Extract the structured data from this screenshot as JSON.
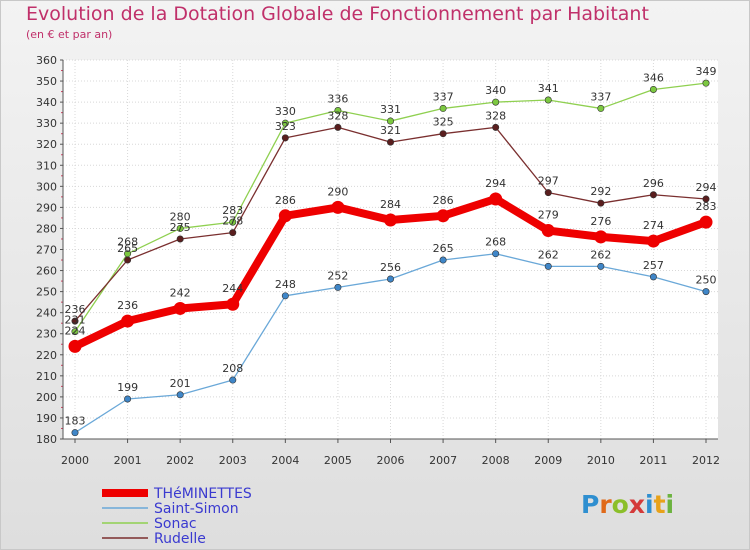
{
  "title": "Evolution de la Dotation Globale de Fonctionnement par Habitant",
  "subtitle": "(en € et par an)",
  "logo": {
    "text": "Proxiti",
    "colors": [
      "#2f8fd0",
      "#e06a1a",
      "#8bbf2a",
      "#d43a3a",
      "#2f8fd0",
      "#e8a21a",
      "#6cb33f"
    ]
  },
  "chart_data": {
    "type": "line",
    "x": [
      "2000",
      "2001",
      "2002",
      "2003",
      "2004",
      "2005",
      "2006",
      "2007",
      "2008",
      "2009",
      "2010",
      "2011",
      "2012"
    ],
    "ylim": [
      180,
      360
    ],
    "yticks": [
      180,
      190,
      200,
      210,
      220,
      230,
      240,
      250,
      260,
      270,
      280,
      290,
      300,
      310,
      320,
      330,
      340,
      350,
      360
    ],
    "grid": true,
    "legend_position": "bottom-left",
    "series": [
      {
        "name": "Sonac",
        "color": "#8fd050",
        "dot": "#7cc840",
        "emphasis": false,
        "values": [
          231,
          268,
          280,
          283,
          330,
          336,
          331,
          337,
          340,
          341,
          337,
          346,
          349
        ]
      },
      {
        "name": "Rudelle",
        "color": "#7a2f2f",
        "dot": "#5a1e1e",
        "emphasis": false,
        "values": [
          236,
          265,
          275,
          278,
          323,
          328,
          321,
          325,
          328,
          297,
          292,
          296,
          294
        ]
      },
      {
        "name": "Saint-Simon",
        "color": "#6aa8d8",
        "dot": "#3f86c8",
        "emphasis": false,
        "values": [
          183,
          199,
          201,
          208,
          248,
          252,
          256,
          265,
          268,
          262,
          262,
          257,
          250
        ]
      },
      {
        "name": "THéMINETTES",
        "color": "#ee0000",
        "dot": "#ee0000",
        "emphasis": true,
        "values": [
          224,
          236,
          242,
          244,
          286,
          290,
          284,
          286,
          294,
          279,
          276,
          274,
          283
        ]
      }
    ],
    "legend_order": [
      "THéMINETTES",
      "Saint-Simon",
      "Sonac",
      "Rudelle"
    ]
  }
}
